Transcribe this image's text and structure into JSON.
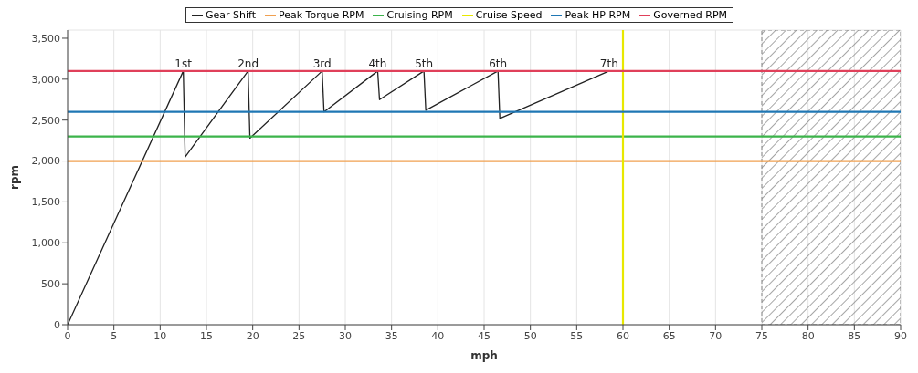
{
  "chart_data": {
    "type": "line",
    "xlabel": "mph",
    "ylabel": "rpm",
    "xlim": [
      0,
      90
    ],
    "xticks": [
      0,
      5,
      10,
      15,
      20,
      25,
      30,
      35,
      40,
      45,
      50,
      55,
      60,
      65,
      70,
      75,
      80,
      85,
      90
    ],
    "ylim": [
      0,
      3600
    ],
    "yticks": [
      0,
      500,
      {
        "value": 1000,
        "label": "1,000"
      },
      {
        "value": 1500,
        "label": "1,500"
      },
      {
        "value": 2000,
        "label": "2,000"
      },
      {
        "value": 2500,
        "label": "2,500"
      },
      {
        "value": 3000,
        "label": "3,000"
      },
      {
        "value": 3500,
        "label": "3,500"
      }
    ],
    "grid": true,
    "legend": "top",
    "marker": "none",
    "line_style": "solid",
    "series": [
      {
        "name": "Gear Shift",
        "color": "#222222",
        "x": [
          0,
          12.5,
          12.7,
          19.5,
          19.7,
          27.5,
          27.7,
          33.5,
          33.7,
          38.5,
          38.7,
          46.5,
          46.7,
          58.5
        ],
        "values": [
          0,
          3100,
          2050,
          3100,
          2280,
          3100,
          2600,
          3100,
          2750,
          3100,
          2620,
          3100,
          2520,
          3100
        ]
      },
      {
        "name": "Peak Torque RPM",
        "color": "#f0a050",
        "x": [
          0,
          90
        ],
        "values": [
          2000,
          2000
        ]
      },
      {
        "name": "Cruising RPM",
        "color": "#3cb44b",
        "x": [
          0,
          90
        ],
        "values": [
          2300,
          2300
        ]
      },
      {
        "name": "Cruise Speed",
        "color": "#e8e800",
        "x": [
          60,
          60
        ],
        "values": [
          0,
          3600
        ]
      },
      {
        "name": "Peak HP RPM",
        "color": "#1f77b4",
        "x": [
          0,
          90
        ],
        "values": [
          2600,
          2600
        ]
      },
      {
        "name": "Governed RPM",
        "color": "#e0405a",
        "x": [
          0,
          90
        ],
        "values": [
          3100,
          3100
        ]
      }
    ],
    "bands": [
      {
        "axis": "x",
        "from": 75,
        "to": 90,
        "color": "#888888"
      }
    ],
    "annotations": [
      {
        "text": "1st",
        "x": 12.5,
        "y": 3100
      },
      {
        "text": "2nd",
        "x": 19.5,
        "y": 3100
      },
      {
        "text": "3rd",
        "x": 27.5,
        "y": 3100
      },
      {
        "text": "4th",
        "x": 33.5,
        "y": 3100
      },
      {
        "text": "5th",
        "x": 38.5,
        "y": 3100
      },
      {
        "text": "6th",
        "x": 46.5,
        "y": 3100
      },
      {
        "text": "7th",
        "x": 58.5,
        "y": 3100
      }
    ]
  }
}
